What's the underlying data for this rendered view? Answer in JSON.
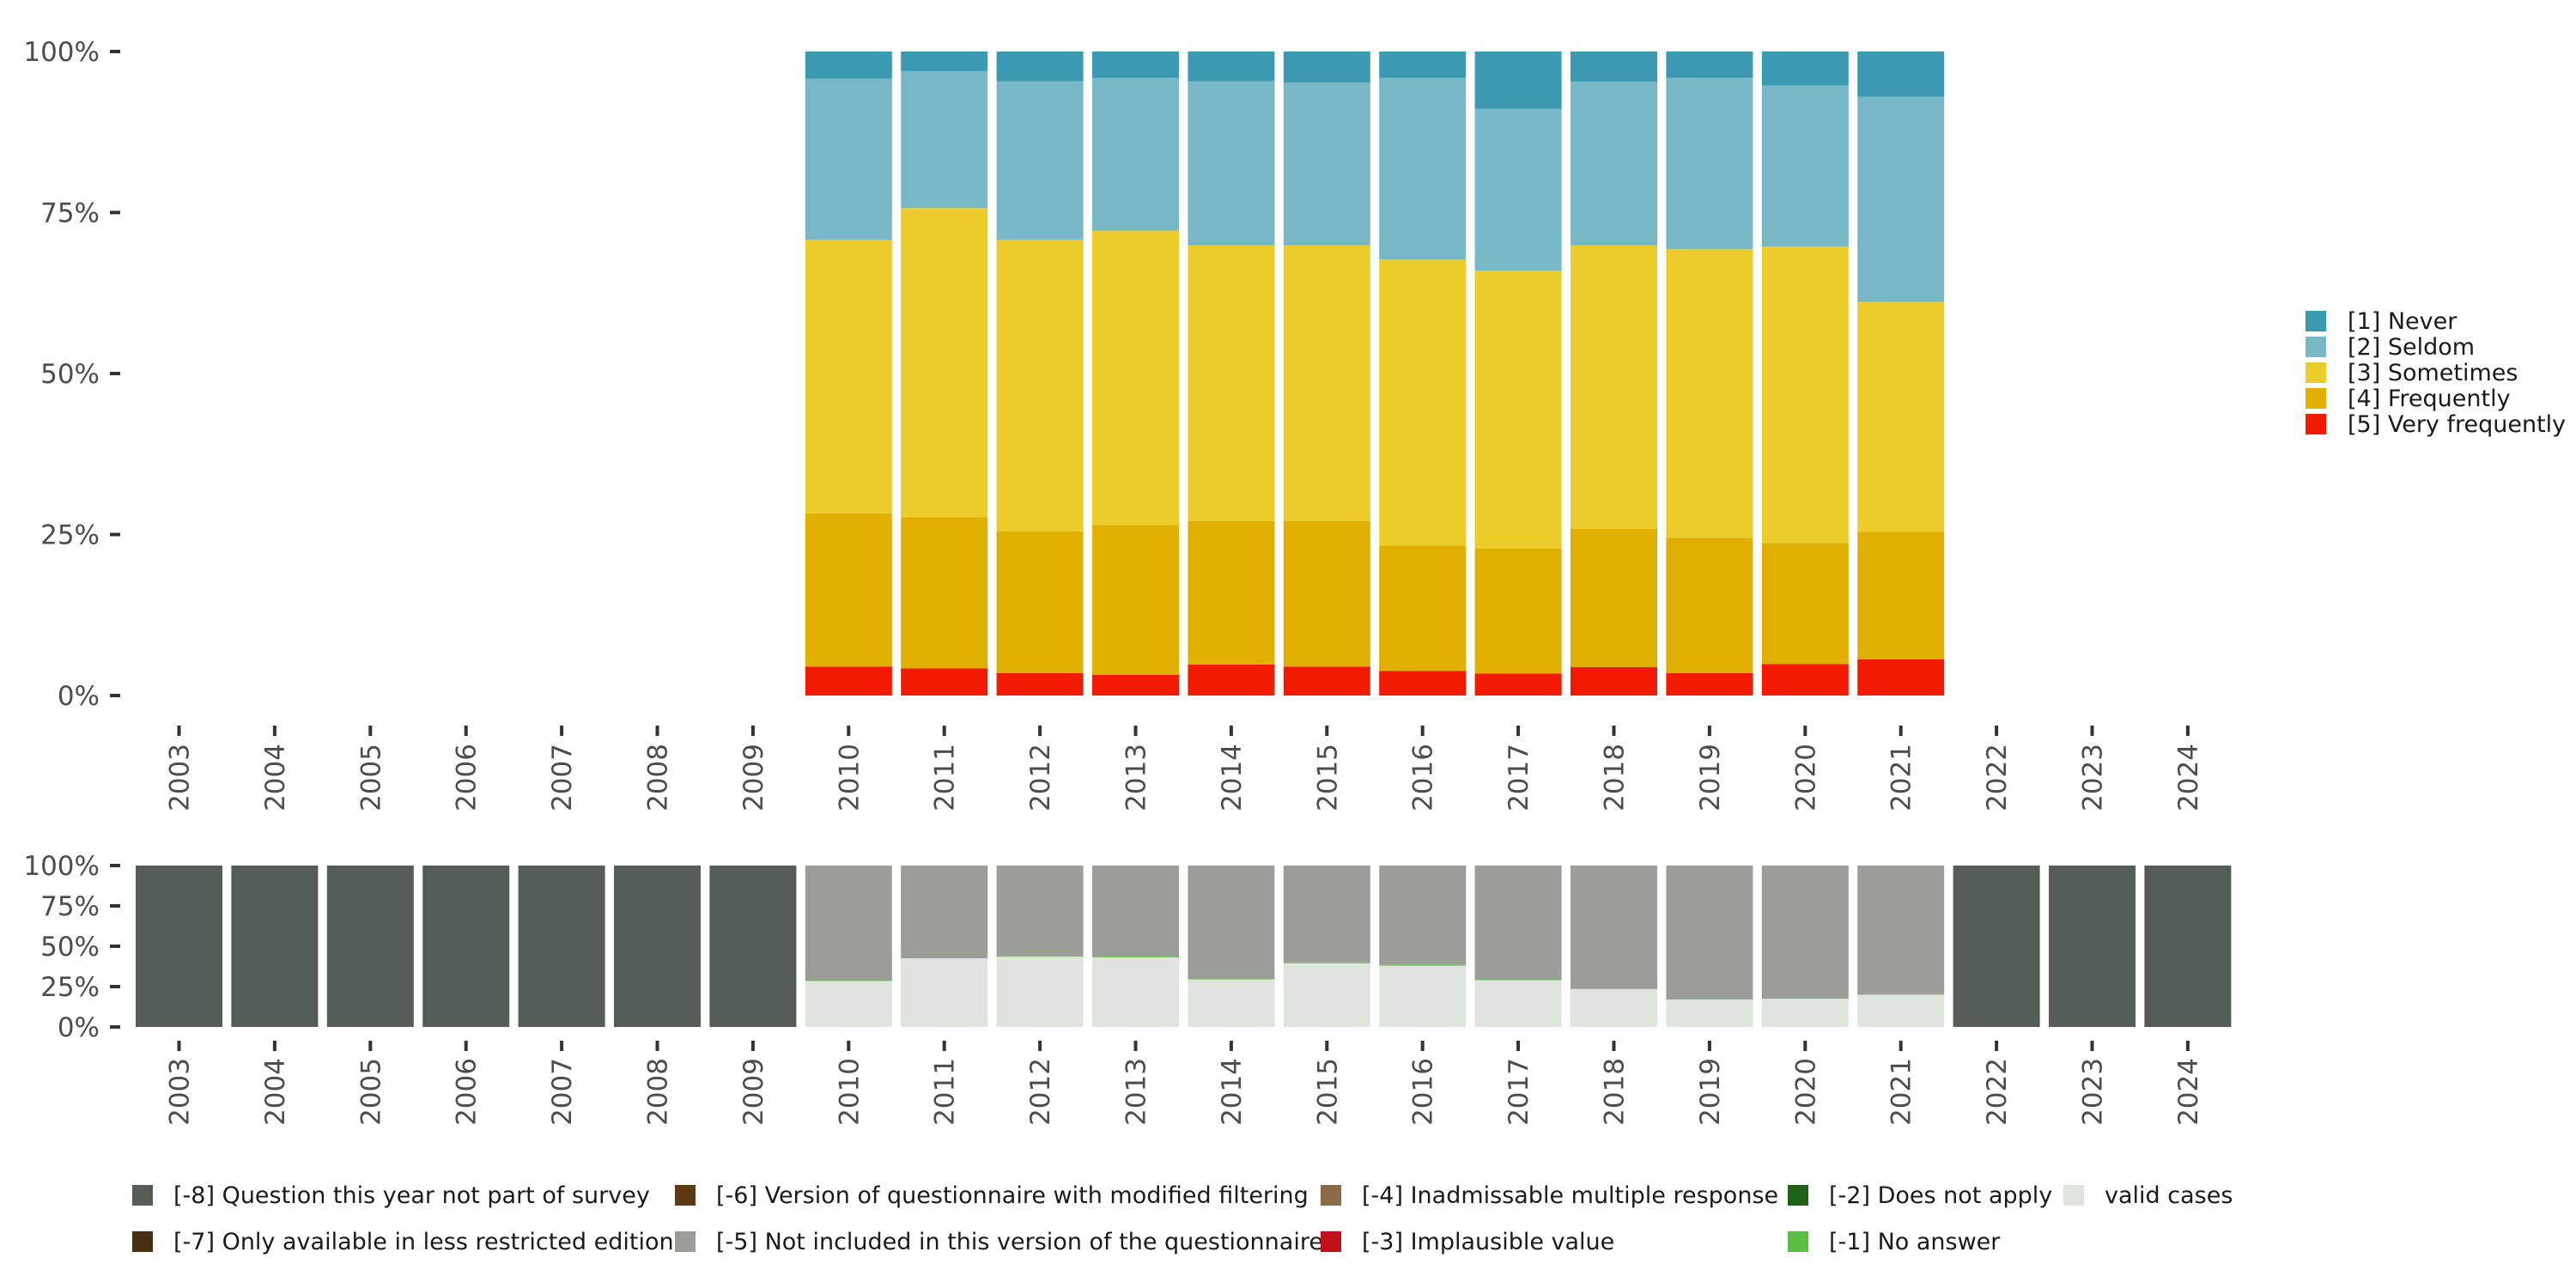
{
  "chart_data": [
    {
      "type": "bar",
      "stacked": true,
      "normalized": true,
      "categories": [
        "2003",
        "2004",
        "2005",
        "2006",
        "2007",
        "2008",
        "2009",
        "2010",
        "2011",
        "2012",
        "2013",
        "2014",
        "2015",
        "2016",
        "2017",
        "2018",
        "2019",
        "2020",
        "2021",
        "2022",
        "2023",
        "2024"
      ],
      "y_ticks": [
        "0%",
        "25%",
        "50%",
        "75%",
        "100%"
      ],
      "ylim": [
        0,
        100
      ],
      "legend_position": "right",
      "series": [
        {
          "name": "[5] Very frequently",
          "color": "#F21A00",
          "values": [
            null,
            null,
            null,
            null,
            null,
            null,
            null,
            4.5,
            4.2,
            3.5,
            3.2,
            4.8,
            4.5,
            3.8,
            3.4,
            4.4,
            3.5,
            4.9,
            5.6,
            null,
            null,
            null
          ]
        },
        {
          "name": "[4] Frequently",
          "color": "#E1AF00",
          "values": [
            null,
            null,
            null,
            null,
            null,
            null,
            null,
            23.8,
            23.5,
            22.0,
            23.3,
            22.3,
            22.6,
            19.5,
            19.4,
            21.5,
            21.0,
            18.8,
            19.8,
            null,
            null,
            null
          ]
        },
        {
          "name": "[3] Sometimes",
          "color": "#EBCC2A",
          "values": [
            null,
            null,
            null,
            null,
            null,
            null,
            null,
            42.5,
            48.0,
            45.3,
            45.7,
            42.8,
            42.8,
            44.4,
            43.2,
            44.0,
            44.8,
            46.0,
            35.7,
            null,
            null,
            null
          ]
        },
        {
          "name": "[2] Seldom",
          "color": "#78B7C5",
          "values": [
            null,
            null,
            null,
            null,
            null,
            null,
            null,
            25.0,
            21.3,
            24.6,
            23.7,
            25.5,
            25.3,
            28.2,
            25.1,
            25.4,
            26.6,
            25.0,
            31.9,
            null,
            null,
            null
          ]
        },
        {
          "name": "[1] Never",
          "color": "#3B9AB2",
          "values": [
            null,
            null,
            null,
            null,
            null,
            null,
            null,
            4.2,
            3.0,
            4.6,
            4.1,
            4.6,
            4.8,
            4.1,
            8.9,
            4.7,
            4.1,
            5.3,
            7.0,
            null,
            null,
            null
          ]
        }
      ]
    },
    {
      "type": "bar",
      "stacked": true,
      "normalized": true,
      "categories": [
        "2003",
        "2004",
        "2005",
        "2006",
        "2007",
        "2008",
        "2009",
        "2010",
        "2011",
        "2012",
        "2013",
        "2014",
        "2015",
        "2016",
        "2017",
        "2018",
        "2019",
        "2020",
        "2021",
        "2022",
        "2023",
        "2024"
      ],
      "y_ticks": [
        "0%",
        "25%",
        "50%",
        "75%",
        "100%"
      ],
      "ylim": [
        0,
        100
      ],
      "legend_position": "bottom",
      "series": [
        {
          "name": "valid cases",
          "color": "#E0E4DF",
          "values": [
            0,
            0,
            0,
            0,
            0,
            0,
            0,
            28.5,
            42.5,
            43.5,
            43.0,
            29.5,
            39.5,
            38.0,
            29.0,
            23.5,
            17.0,
            17.5,
            20.0,
            0,
            0,
            0
          ]
        },
        {
          "name": "[-1] No answer",
          "color": "#5BBF45",
          "values": [
            0,
            0,
            0,
            0,
            0,
            0,
            0,
            0.5,
            0.5,
            0.5,
            0.5,
            0.5,
            0.5,
            0.5,
            0.5,
            0,
            0,
            0,
            0,
            0,
            0,
            0
          ]
        },
        {
          "name": "[-2] Does not apply",
          "color": "#1F6316",
          "values": [
            0,
            0,
            0,
            0,
            0,
            0,
            0,
            0,
            0,
            0,
            0,
            0,
            0,
            0,
            0,
            0,
            0,
            0,
            0,
            0,
            0,
            0
          ]
        },
        {
          "name": "[-3] Implausible value",
          "color": "#C2101B",
          "values": [
            0,
            0,
            0,
            0,
            0,
            0,
            0,
            0,
            0,
            0,
            0,
            0,
            0,
            0,
            0,
            0,
            0,
            0,
            0,
            0,
            0,
            0
          ]
        },
        {
          "name": "[-4] Inadmissable multiple response",
          "color": "#8B6A47",
          "values": [
            0,
            0,
            0,
            0,
            0,
            0,
            0,
            0,
            0,
            0,
            0,
            0,
            0,
            0,
            0,
            0,
            0,
            0,
            0,
            0,
            0,
            0
          ]
        },
        {
          "name": "[-5] Not included in this version of the questionnaire",
          "color": "#9A9E97",
          "values": [
            0,
            0,
            0,
            0,
            0,
            0,
            0,
            71.0,
            57.0,
            56.0,
            56.5,
            70.0,
            60.0,
            61.5,
            70.5,
            76.5,
            83.0,
            82.5,
            80.0,
            0,
            0,
            0
          ]
        },
        {
          "name": "[-6] Version of questionnaire with modified filtering",
          "color": "#5B3A14",
          "values": [
            0,
            0,
            0,
            0,
            0,
            0,
            0,
            0,
            0,
            0,
            0,
            0,
            0,
            0,
            0,
            0,
            0,
            0,
            0,
            0,
            0,
            0
          ]
        },
        {
          "name": "[-7] Only available in less restricted edition",
          "color": "#4A2E14",
          "values": [
            0,
            0,
            0,
            0,
            0,
            0,
            0,
            0,
            0,
            0,
            0,
            0,
            0,
            0,
            0,
            0,
            0,
            0,
            0,
            0,
            0,
            0
          ]
        },
        {
          "name": "[-8] Question this year not part of survey",
          "color": "#545C56",
          "values": [
            100,
            100,
            100,
            100,
            100,
            100,
            100,
            0,
            0,
            0,
            0,
            0,
            0,
            0,
            0,
            0,
            0,
            0,
            0,
            100,
            100,
            100
          ]
        }
      ],
      "legend_order": [
        "[-8] Question this year not part of survey",
        "[-7] Only available in less restricted edition",
        "[-6] Version of questionnaire with modified filtering",
        "[-5] Not included in this version of the questionnaire",
        "[-4] Inadmissable multiple response",
        "[-3] Implausible value",
        "[-2] Does not apply",
        "[-1] No answer",
        "valid cases"
      ]
    }
  ]
}
